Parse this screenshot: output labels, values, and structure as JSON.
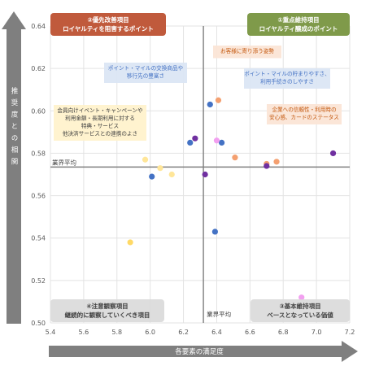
{
  "chart_data": {
    "type": "scatter",
    "xlabel": "各要素の満足度",
    "ylabel": "推奨度との相関",
    "xlim": [
      5.4,
      7.2
    ],
    "ylim": [
      0.5,
      0.64
    ],
    "xticks": [
      "5.4",
      "5.6",
      "5.8",
      "6.0",
      "6.2",
      "6.4",
      "6.6",
      "6.8",
      "7.0",
      "7.2"
    ],
    "yticks": [
      "0.50",
      "0.52",
      "0.54",
      "0.56",
      "0.58",
      "0.60",
      "0.62",
      "0.64"
    ],
    "grid": true,
    "reference_lines": {
      "x": {
        "value": 6.32,
        "label": "業界平均"
      },
      "y": {
        "value": 0.5735,
        "label": "業界平均"
      }
    },
    "quadrants": [
      {
        "id": "q2",
        "line1": "②優先改善項目",
        "line2": "ロイヤルティを阻害するポイント",
        "color": "#c05a3c"
      },
      {
        "id": "q1",
        "line1": "①重点維持項目",
        "line2": "ロイヤルティ醸成のポイント",
        "color": "#7f9a4a"
      },
      {
        "id": "q4",
        "line1": "④注意観察項目",
        "line2": "継続的に観察していくべき項目",
        "color": "#d9d9d9"
      },
      {
        "id": "q3",
        "line1": "③基本維持項目",
        "line2": "ベースとなっている価値",
        "color": "#d9d9d9"
      }
    ],
    "points": [
      {
        "x": 6.41,
        "y": 0.605,
        "color": "#f4a070"
      },
      {
        "x": 6.36,
        "y": 0.603,
        "color": "#4472c4"
      },
      {
        "x": 6.27,
        "y": 0.587,
        "color": "#7030a0"
      },
      {
        "x": 6.24,
        "y": 0.585,
        "color": "#4472c4"
      },
      {
        "x": 6.43,
        "y": 0.585,
        "color": "#4472c4"
      },
      {
        "x": 6.4,
        "y": 0.586,
        "color": "#f2a0f0"
      },
      {
        "x": 7.1,
        "y": 0.58,
        "color": "#7030a0"
      },
      {
        "x": 6.51,
        "y": 0.578,
        "color": "#f4a070"
      },
      {
        "x": 6.7,
        "y": 0.575,
        "color": "#f4a070"
      },
      {
        "x": 6.76,
        "y": 0.576,
        "color": "#f4a070"
      },
      {
        "x": 6.7,
        "y": 0.574,
        "color": "#7030a0"
      },
      {
        "x": 5.97,
        "y": 0.577,
        "color": "#ffe699"
      },
      {
        "x": 6.06,
        "y": 0.573,
        "color": "#ffe699"
      },
      {
        "x": 6.13,
        "y": 0.57,
        "color": "#ffe699"
      },
      {
        "x": 6.01,
        "y": 0.569,
        "color": "#4472c4"
      },
      {
        "x": 6.33,
        "y": 0.57,
        "color": "#7030a0"
      },
      {
        "x": 6.39,
        "y": 0.543,
        "color": "#4472c4"
      },
      {
        "x": 5.88,
        "y": 0.538,
        "color": "#ffd966"
      },
      {
        "x": 6.91,
        "y": 0.512,
        "color": "#f2a0f0"
      }
    ],
    "highlight_regions": [
      {
        "color": "#dbe6f4",
        "kind": "blue",
        "cx": 6.33,
        "cy": 0.594
      },
      {
        "color": "#fff2cc",
        "kind": "yellow",
        "cx": 6.05,
        "cy": 0.573
      },
      {
        "color": "#f8cbad",
        "kind": "orange-small",
        "cx": 6.41,
        "cy": 0.605
      },
      {
        "color": "#f8cbad",
        "kind": "orange-large",
        "cx": 6.63,
        "cy": 0.577
      }
    ],
    "annotations": [
      {
        "kind": "blue",
        "lines": [
          "ポイント・マイルの交換商品や",
          "移行先の豊富さ"
        ],
        "bg": "#dbe6f4",
        "color": "#4472c4"
      },
      {
        "kind": "blue",
        "lines": [
          "ポイント・マイルの貯まりやすさ、",
          "利用手続きのしやすさ"
        ],
        "bg": "#dbe6f4",
        "color": "#4472c4"
      },
      {
        "kind": "orange",
        "lines": [
          "お客様に寄り添う姿勢"
        ],
        "bg": "#fbe5d6",
        "color": "#c55a11"
      },
      {
        "kind": "orange",
        "lines": [
          "企業への信頼性・利用時の",
          "安心感、カードのステータス"
        ],
        "bg": "#fbe5d6",
        "color": "#c55a11"
      },
      {
        "kind": "yellow",
        "lines": [
          "会員向けイベント・キャンペーンや",
          "利用金額・長期利用に対する",
          "特典・サービス",
          "他決済サービスとの連携のよさ"
        ],
        "bg": "#fff2cc",
        "color": "#404040"
      }
    ]
  }
}
